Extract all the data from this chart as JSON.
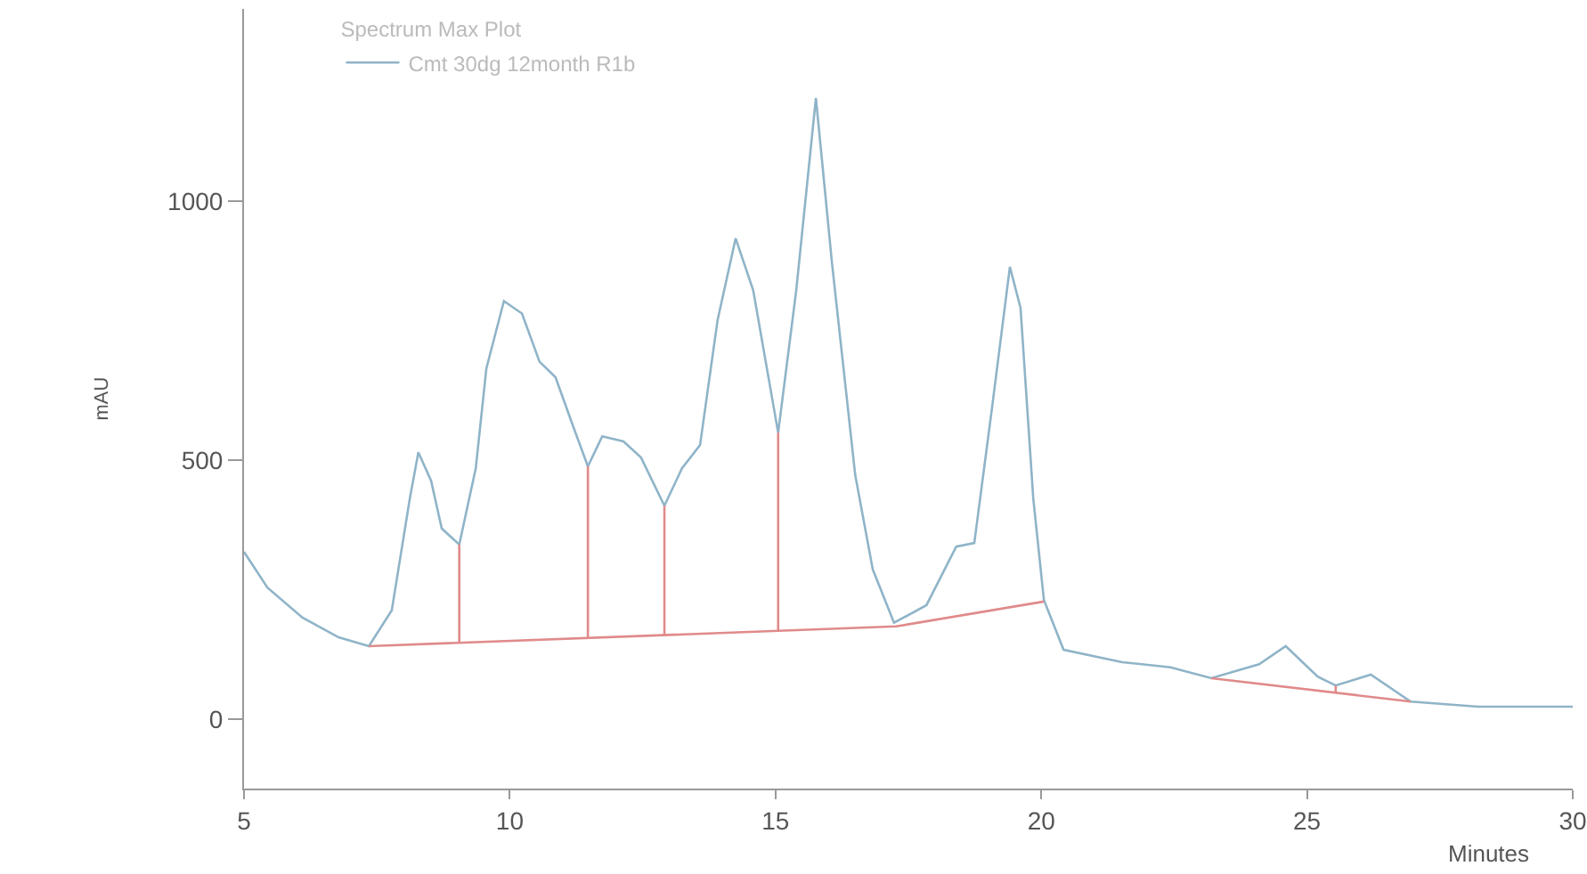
{
  "chart_data": {
    "type": "line",
    "xlabel": "Minutes",
    "ylabel": "mAU",
    "legend_title": "Spectrum Max Plot",
    "legend": "top left",
    "grid": false,
    "marker": "none",
    "line_style": "solid",
    "xlim": [
      5,
      30
    ],
    "ylim": [
      -134,
      1371
    ],
    "xticks": [
      5,
      10,
      15,
      20,
      25,
      30
    ],
    "yticks": [
      0,
      500,
      1000
    ],
    "series": [
      {
        "name": "Cmt 30dg 12month R1b",
        "color": "#8fb4c8",
        "x": [
          5.0,
          5.44,
          6.1,
          6.78,
          7.35,
          7.78,
          8.12,
          8.28,
          8.52,
          8.72,
          9.05,
          9.36,
          9.56,
          9.89,
          10.23,
          10.56,
          10.86,
          11.2,
          11.47,
          11.74,
          12.14,
          12.47,
          12.91,
          13.24,
          13.58,
          13.91,
          14.25,
          14.58,
          15.05,
          15.39,
          15.76,
          16.06,
          16.5,
          16.83,
          17.23,
          17.84,
          18.4,
          18.74,
          19.07,
          19.41,
          19.61,
          19.85,
          20.05,
          20.42,
          21.52,
          22.43,
          23.2,
          24.1,
          24.6,
          25.2,
          25.54,
          26.2,
          26.95,
          28.22,
          30
        ],
        "values": [
          323,
          254,
          196,
          158,
          141,
          210,
          426,
          515,
          460,
          368,
          337,
          484,
          677,
          807,
          783,
          690,
          660,
          563,
          488,
          546,
          536,
          505,
          412,
          484,
          529,
          770,
          928,
          828,
          553,
          828,
          1199,
          883,
          471,
          289,
          186,
          220,
          333,
          340,
          598,
          873,
          794,
          426,
          230,
          134,
          110,
          100,
          79,
          106,
          141,
          82,
          65,
          86,
          34,
          24,
          24
        ]
      },
      {
        "color": "#e08a8a",
        "x": [
          7.35,
          17.27,
          20.05
        ],
        "values": [
          141,
          179,
          227
        ]
      },
      {
        "color": "#e08a8a",
        "x": [
          23.2,
          26.95
        ],
        "values": [
          79,
          34
        ]
      },
      {
        "color": "#e08a8a",
        "x": [
          9.05,
          9.05
        ],
        "values": [
          147,
          337
        ]
      },
      {
        "color": "#e08a8a",
        "x": [
          11.47,
          11.47
        ],
        "values": [
          157,
          488
        ]
      },
      {
        "color": "#e08a8a",
        "x": [
          12.91,
          12.91
        ],
        "values": [
          162,
          412
        ]
      },
      {
        "color": "#e08a8a",
        "x": [
          15.05,
          15.05
        ],
        "values": [
          170,
          553
        ]
      },
      {
        "color": "#e08a8a",
        "x": [
          25.54,
          25.54
        ],
        "values": [
          51,
          65
        ]
      }
    ]
  }
}
